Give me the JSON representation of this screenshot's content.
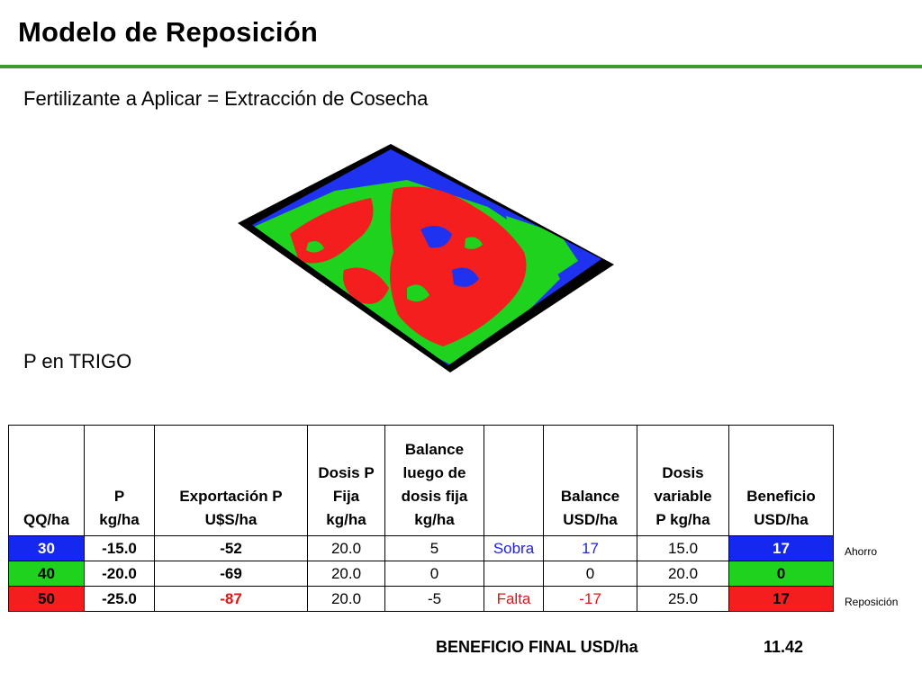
{
  "header": {
    "title": "Modelo de Reposición",
    "subtitle": "Fertilizante a Aplicar = Extracción de Cosecha",
    "crop_label": "P en TRIGO"
  },
  "colors": {
    "accent_line": "#3c9a30",
    "zone_blue": "#1428f0",
    "zone_green": "#1ed21e",
    "zone_red": "#f51e1e"
  },
  "table": {
    "headers": [
      "QQ/ha",
      "P\nkg/ha",
      "Exportación P\nU$S/ha",
      "Dosis P\nFija\nkg/ha",
      "Balance\nluego de\ndosis fija\nkg/ha",
      "",
      "Balance\nUSD/ha",
      "Dosis\nvariable\nP kg/ha",
      "Beneficio\nUSD/ha"
    ],
    "rows": [
      {
        "qq": "30",
        "p": "-15.0",
        "export": "-52",
        "dosis_fija": "20.0",
        "balance": "5",
        "estado": "Sobra",
        "balance_usd": "17",
        "dosis_var": "15.0",
        "beneficio": "17",
        "note": "Ahorro"
      },
      {
        "qq": "40",
        "p": "-20.0",
        "export": "-69",
        "dosis_fija": "20.0",
        "balance": "0",
        "estado": "",
        "balance_usd": "0",
        "dosis_var": "20.0",
        "beneficio": "0",
        "note": ""
      },
      {
        "qq": "50",
        "p": "-25.0",
        "export": "-87",
        "dosis_fija": "20.0",
        "balance": "-5",
        "estado": "Falta",
        "balance_usd": "-17",
        "dosis_var": "25.0",
        "beneficio": "17",
        "note": "Reposición"
      }
    ]
  },
  "final": {
    "label": "BENEFICIO FINAL USD/ha",
    "value": "11.42"
  }
}
